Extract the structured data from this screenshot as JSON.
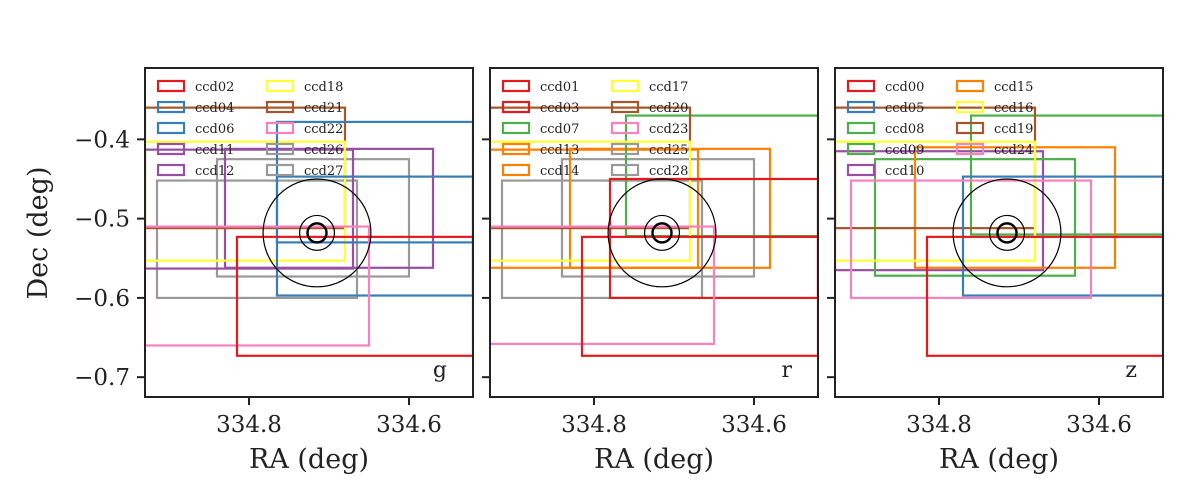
{
  "colors": {
    "red": "#e41a1c",
    "blue": "#377eb8",
    "green": "#4daf4a",
    "purple": "#984ea3",
    "orange": "#ff7f00",
    "yellow": "#ffff33",
    "brown": "#a65628",
    "pink": "#f781bf",
    "gray": "#999999"
  },
  "chart_data": [
    {
      "type": "rectangles",
      "band": "g",
      "xlabel": "RA (deg)",
      "ylabel": "Dec (deg)",
      "xlim": [
        334.93,
        334.52
      ],
      "ylim": [
        -0.725,
        -0.31
      ],
      "xticks": [
        334.8,
        334.6
      ],
      "xtick_labels": [
        "334.8",
        "334.6"
      ],
      "yticks": [
        -0.4,
        -0.5,
        -0.6,
        -0.7
      ],
      "ytick_labels": [
        "−0.4",
        "−0.5",
        "−0.6",
        "−0.7"
      ],
      "legend": {
        "placement": "upper-left",
        "ncol": 2
      },
      "legend_entries": [
        "ccd02",
        "ccd04",
        "ccd06",
        "ccd11",
        "ccd12",
        "ccd18",
        "ccd21",
        "ccd22",
        "ccd26",
        "ccd27"
      ],
      "ccds": [
        {
          "name": "ccd27",
          "color": "gray",
          "ra": [
            334.915,
            334.665
          ],
          "dec": [
            -0.6,
            -0.452
          ]
        },
        {
          "name": "ccd26",
          "color": "gray",
          "ra": [
            334.84,
            334.6
          ],
          "dec": [
            -0.573,
            -0.425
          ]
        },
        {
          "name": "ccd12",
          "color": "purple",
          "ra": [
            334.93,
            334.67
          ],
          "dec": [
            -0.563,
            -0.413
          ]
        },
        {
          "name": "ccd11",
          "color": "purple",
          "ra": [
            334.83,
            334.57
          ],
          "dec": [
            -0.562,
            -0.412
          ]
        },
        {
          "name": "ccd21",
          "color": "brown",
          "ra": [
            334.93,
            334.68
          ],
          "dec": [
            -0.512,
            -0.36
          ]
        },
        {
          "name": "ccd18",
          "color": "yellow",
          "ra": [
            334.93,
            334.68
          ],
          "dec": [
            -0.553,
            -0.403
          ]
        },
        {
          "name": "ccd06",
          "color": "blue",
          "ra": [
            334.765,
            334.52
          ],
          "dec": [
            -0.53,
            -0.378
          ]
        },
        {
          "name": "ccd04",
          "color": "blue",
          "ra": [
            334.765,
            334.52
          ],
          "dec": [
            -0.597,
            -0.447
          ]
        },
        {
          "name": "ccd22",
          "color": "pink",
          "ra": [
            334.93,
            334.65
          ],
          "dec": [
            -0.66,
            -0.51
          ]
        },
        {
          "name": "ccd02",
          "color": "red",
          "ra": [
            334.815,
            334.52
          ],
          "dec": [
            -0.673,
            -0.523
          ]
        }
      ],
      "circles": {
        "center": [
          334.715,
          -0.518
        ],
        "radii": [
          0.068,
          0.022,
          0.012
        ]
      }
    },
    {
      "type": "rectangles",
      "band": "r",
      "xlabel": "RA (deg)",
      "xlim": [
        334.93,
        334.52
      ],
      "ylim": [
        -0.725,
        -0.31
      ],
      "xticks": [
        334.8,
        334.6
      ],
      "xtick_labels": [
        "334.8",
        "334.6"
      ],
      "legend": {
        "placement": "upper-left",
        "ncol": 2
      },
      "legend_entries": [
        "ccd01",
        "ccd03",
        "ccd07",
        "ccd13",
        "ccd14",
        "ccd17",
        "ccd20",
        "ccd23",
        "ccd25",
        "ccd28"
      ],
      "ccds": [
        {
          "name": "ccd28",
          "color": "gray",
          "ra": [
            334.915,
            334.665
          ],
          "dec": [
            -0.6,
            -0.452
          ]
        },
        {
          "name": "ccd25",
          "color": "gray",
          "ra": [
            334.84,
            334.6
          ],
          "dec": [
            -0.573,
            -0.425
          ]
        },
        {
          "name": "ccd14",
          "color": "orange",
          "ra": [
            334.93,
            334.67
          ],
          "dec": [
            -0.562,
            -0.413
          ]
        },
        {
          "name": "ccd13",
          "color": "orange",
          "ra": [
            334.83,
            334.58
          ],
          "dec": [
            -0.562,
            -0.412
          ]
        },
        {
          "name": "ccd07",
          "color": "green",
          "ra": [
            334.76,
            334.52
          ],
          "dec": [
            -0.522,
            -0.37
          ]
        },
        {
          "name": "ccd20",
          "color": "brown",
          "ra": [
            334.93,
            334.68
          ],
          "dec": [
            -0.512,
            -0.36
          ]
        },
        {
          "name": "ccd17",
          "color": "yellow",
          "ra": [
            334.93,
            334.68
          ],
          "dec": [
            -0.553,
            -0.403
          ]
        },
        {
          "name": "ccd03",
          "color": "red",
          "ra": [
            334.78,
            334.52
          ],
          "dec": [
            -0.6,
            -0.45
          ]
        },
        {
          "name": "ccd23",
          "color": "pink",
          "ra": [
            334.93,
            334.65
          ],
          "dec": [
            -0.658,
            -0.51
          ]
        },
        {
          "name": "ccd01",
          "color": "red",
          "ra": [
            334.815,
            334.52
          ],
          "dec": [
            -0.673,
            -0.523
          ]
        }
      ],
      "circles": {
        "center": [
          334.715,
          -0.518
        ],
        "radii": [
          0.068,
          0.022,
          0.012
        ]
      }
    },
    {
      "type": "rectangles",
      "band": "z",
      "xlabel": "RA (deg)",
      "xlim": [
        334.93,
        334.52
      ],
      "ylim": [
        -0.725,
        -0.31
      ],
      "xticks": [
        334.8,
        334.6
      ],
      "xtick_labels": [
        "334.8",
        "334.6"
      ],
      "legend": {
        "placement": "upper-left",
        "ncol": 2
      },
      "legend_entries": [
        "ccd00",
        "ccd05",
        "ccd08",
        "ccd09",
        "ccd10",
        "ccd15",
        "ccd16",
        "ccd19",
        "ccd24"
      ],
      "ccds": [
        {
          "name": "ccd10",
          "color": "purple",
          "ra": [
            334.93,
            334.67
          ],
          "dec": [
            -0.565,
            -0.415
          ]
        },
        {
          "name": "ccd08",
          "color": "green",
          "ra": [
            334.88,
            334.63
          ],
          "dec": [
            -0.572,
            -0.425
          ]
        },
        {
          "name": "ccd09",
          "color": "green",
          "ra": [
            334.76,
            334.52
          ],
          "dec": [
            -0.52,
            -0.37
          ]
        },
        {
          "name": "ccd15",
          "color": "orange",
          "ra": [
            334.83,
            334.58
          ],
          "dec": [
            -0.562,
            -0.41
          ]
        },
        {
          "name": "ccd19",
          "color": "brown",
          "ra": [
            334.93,
            334.68
          ],
          "dec": [
            -0.512,
            -0.36
          ]
        },
        {
          "name": "ccd16",
          "color": "yellow",
          "ra": [
            334.93,
            334.68
          ],
          "dec": [
            -0.553,
            -0.403
          ]
        },
        {
          "name": "ccd05",
          "color": "blue",
          "ra": [
            334.77,
            334.52
          ],
          "dec": [
            -0.597,
            -0.447
          ]
        },
        {
          "name": "ccd24",
          "color": "pink",
          "ra": [
            334.91,
            334.61
          ],
          "dec": [
            -0.6,
            -0.452
          ]
        },
        {
          "name": "ccd00",
          "color": "red",
          "ra": [
            334.815,
            334.52
          ],
          "dec": [
            -0.673,
            -0.523
          ]
        }
      ],
      "circles": {
        "center": [
          334.715,
          -0.518
        ],
        "radii": [
          0.068,
          0.022,
          0.012
        ]
      }
    }
  ]
}
